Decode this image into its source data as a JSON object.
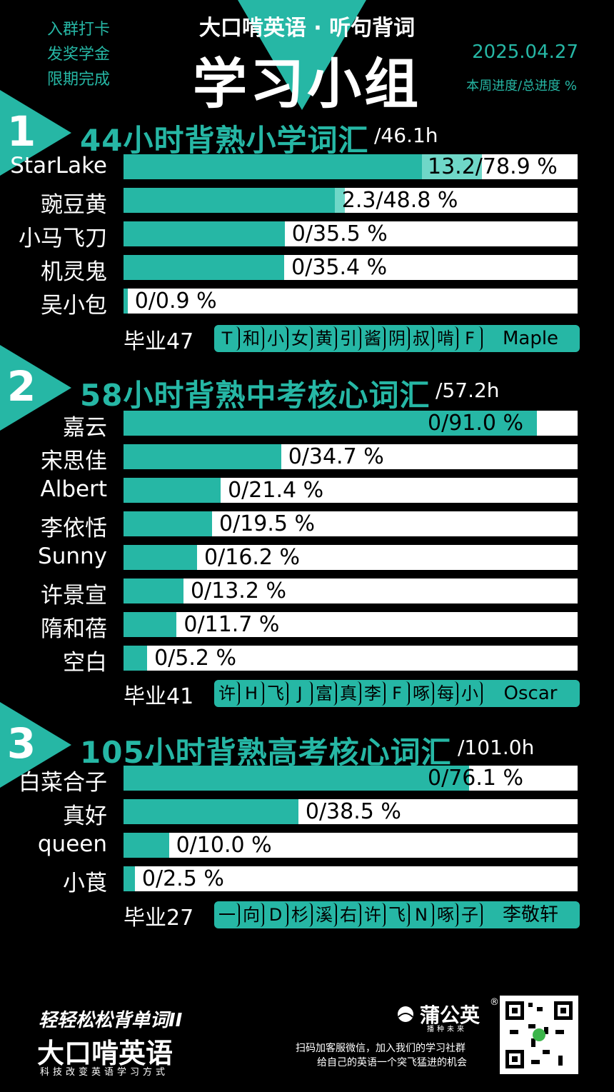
{
  "header": {
    "side_note": [
      "入群打卡",
      "发奖学金",
      "限期完成"
    ],
    "brand": "大口啃英语 · 听句背词",
    "title": "学习小组",
    "date": "2025.04.27",
    "legend": "本周进度/总进度 %"
  },
  "sections": [
    {
      "number": "1",
      "title": "44小时背熟小学词汇",
      "hours": "/46.1h",
      "rows": [
        {
          "name": "StarLake",
          "week": 13.2,
          "total": 78.9,
          "label": "13.2/78.9 %"
        },
        {
          "name": "豌豆黄",
          "week": 2.3,
          "total": 48.8,
          "label": "2.3/48.8 %"
        },
        {
          "name": "小马飞刀",
          "week": 0,
          "total": 35.5,
          "label": "0/35.5 %"
        },
        {
          "name": "机灵鬼",
          "week": 0,
          "total": 35.4,
          "label": "0/35.4 %"
        },
        {
          "name": "吴小包",
          "week": 0,
          "total": 0.9,
          "label": "0/0.9 %"
        }
      ],
      "graduates_label": "毕业47",
      "graduates": [
        "T",
        "和",
        "小",
        "女",
        "黄",
        "引",
        "酱",
        "阴",
        "叔",
        "啃",
        "F"
      ],
      "graduates_last": "Maple"
    },
    {
      "number": "2",
      "title": "58小时背熟中考核心词汇",
      "hours": "/57.2h",
      "rows": [
        {
          "name": "嘉云",
          "week": 0,
          "total": 91.0,
          "label": "0/91.0 %"
        },
        {
          "name": "宋思佳",
          "week": 0,
          "total": 34.7,
          "label": "0/34.7 %"
        },
        {
          "name": "Albert",
          "week": 0,
          "total": 21.4,
          "label": "0/21.4 %"
        },
        {
          "name": "李依恬",
          "week": 0,
          "total": 19.5,
          "label": "0/19.5 %"
        },
        {
          "name": "Sunny",
          "week": 0,
          "total": 16.2,
          "label": "0/16.2 %"
        },
        {
          "name": "许景宣",
          "week": 0,
          "total": 13.2,
          "label": "0/13.2 %"
        },
        {
          "name": "隋和蓓",
          "week": 0,
          "total": 11.7,
          "label": "0/11.7 %"
        },
        {
          "name": "空白",
          "week": 0,
          "total": 5.2,
          "label": "0/5.2 %"
        }
      ],
      "graduates_label": "毕业41",
      "graduates": [
        "许",
        "H",
        "飞",
        "J",
        "富",
        "真",
        "李",
        "F",
        "啄",
        "每",
        "小"
      ],
      "graduates_last": "Oscar"
    },
    {
      "number": "3",
      "title": "105小时背熟高考核心词汇",
      "hours": "/101.0h",
      "rows": [
        {
          "name": "白菜合子",
          "week": 0,
          "total": 76.1,
          "label": "0/76.1 %"
        },
        {
          "name": "真好",
          "week": 0,
          "total": 38.5,
          "label": "0/38.5 %"
        },
        {
          "name": "queen",
          "week": 0,
          "total": 10.0,
          "label": "0/10.0 %"
        },
        {
          "name": "小莨",
          "week": 0,
          "total": 2.5,
          "label": "0/2.5 %"
        }
      ],
      "graduates_label": "毕业27",
      "graduates": [
        "一",
        "向",
        "D",
        "杉",
        "溪",
        "右",
        "许",
        "飞",
        "N",
        "啄",
        "子"
      ],
      "graduates_last": "李敬轩"
    }
  ],
  "footer": {
    "logo_line1": "轻轻松松背单词II",
    "logo_line2": "大口啃英语",
    "logo_line3": "科技改变英语学习方式",
    "partner": "蒲公英",
    "partner_sub": "播种未来",
    "partner_reg": "®",
    "contact": [
      "扫码加客服微信，加入我们的学习社群",
      "给自己的英语一个突飞猛进的机会"
    ]
  },
  "colors": {
    "accent": "#26b7a5",
    "week_fill": "#6fd7c8",
    "background": "#000000"
  },
  "icons": [
    "dandelion-logo-icon",
    "qr-code-icon"
  ]
}
